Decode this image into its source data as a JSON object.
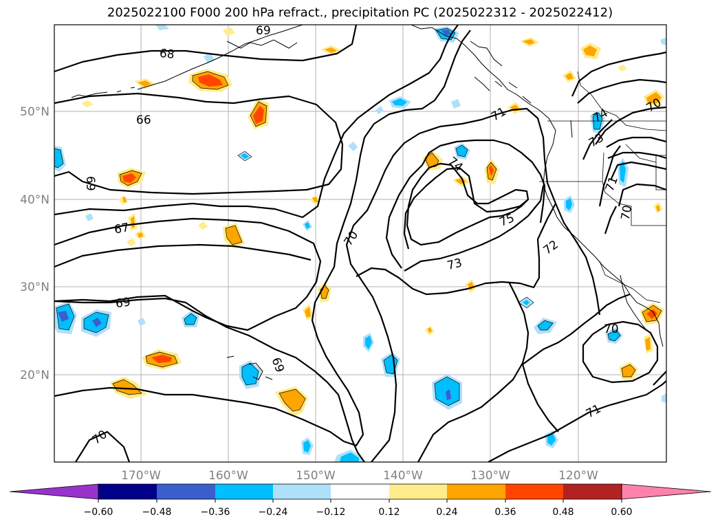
{
  "title": "2025022100 F000 200 hPa refract., precipitation PC (2025022312 - 2025022412)",
  "map": {
    "lon_ticks": [
      "170°W",
      "160°W",
      "150°W",
      "140°W",
      "130°W",
      "120°W"
    ],
    "lat_ticks": [
      "50°N",
      "40°N",
      "30°N",
      "20°N"
    ],
    "contour_labels": [
      "68",
      "69",
      "69",
      "66",
      "67",
      "69",
      "69",
      "70",
      "70",
      "70",
      "71",
      "71",
      "71",
      "72",
      "73",
      "73",
      "74",
      "74",
      "75",
      "70",
      "70",
      "71"
    ]
  },
  "colorbar": {
    "ticks": [
      "−0.60",
      "−0.48",
      "−0.36",
      "−0.24",
      "−0.12",
      "0.12",
      "0.24",
      "0.36",
      "0.48",
      "0.60"
    ],
    "colors": [
      "#9932cc",
      "#00008b",
      "#3a5fcd",
      "#00bfff",
      "#afe0f9",
      "#ffffff",
      "#ffec8b",
      "#ffa500",
      "#ff4500",
      "#b22222",
      "#ff82ab"
    ]
  }
}
